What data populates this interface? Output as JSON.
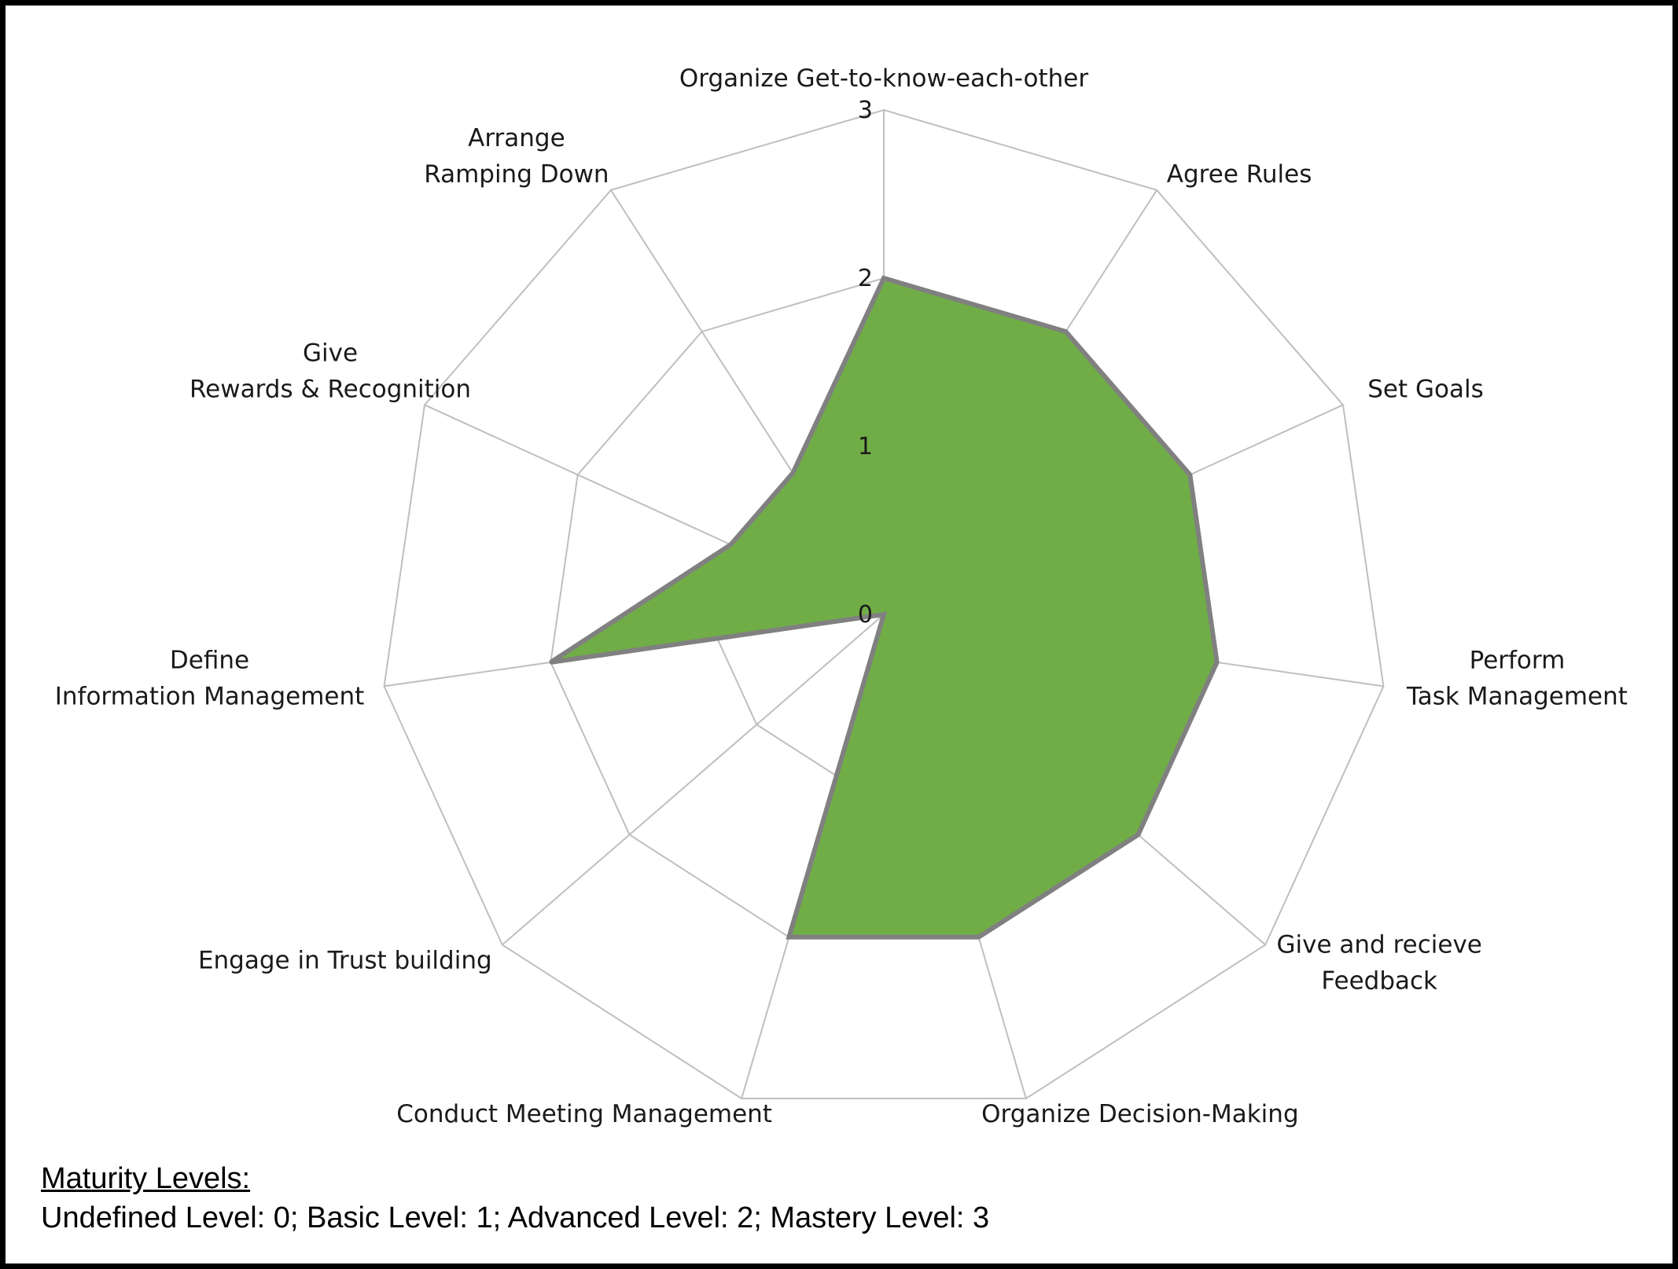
{
  "chart_data": {
    "type": "radar",
    "rmax": 3,
    "ticks": [
      "0",
      "1",
      "2",
      "3"
    ],
    "axes": [
      {
        "label": [
          "Organize Get-to-know-each-other"
        ],
        "value": 2.0
      },
      {
        "label": [
          "Agree Rules"
        ],
        "value": 2.0
      },
      {
        "label": [
          "Set Goals"
        ],
        "value": 2.0
      },
      {
        "label": [
          "Perform",
          "Task Management"
        ],
        "value": 2.0
      },
      {
        "label": [
          "Give and recieve",
          "Feedback"
        ],
        "value": 2.0
      },
      {
        "label": [
          "Organize Decision-Making"
        ],
        "value": 2.0
      },
      {
        "label": [
          "Conduct Meeting Management"
        ],
        "value": 2.0
      },
      {
        "label": [
          "Engage in Trust building"
        ],
        "value": 0.0
      },
      {
        "label": [
          "Define",
          "Information Management"
        ],
        "value": 2.0
      },
      {
        "label": [
          "Give",
          "Rewards & Recognition"
        ],
        "value": 1.0
      },
      {
        "label": [
          "Arrange",
          "Ramping Down"
        ],
        "value": 1.0
      }
    ],
    "grid": true,
    "fill_color": "#70AD47",
    "line_color": "#808080",
    "grid_color": "#BFBFBF"
  },
  "legend": {
    "title": "Maturity Levels:",
    "text": "Undefined Level: 0; Basic Level: 1; Advanced Level: 2; Mastery Level: 3"
  }
}
